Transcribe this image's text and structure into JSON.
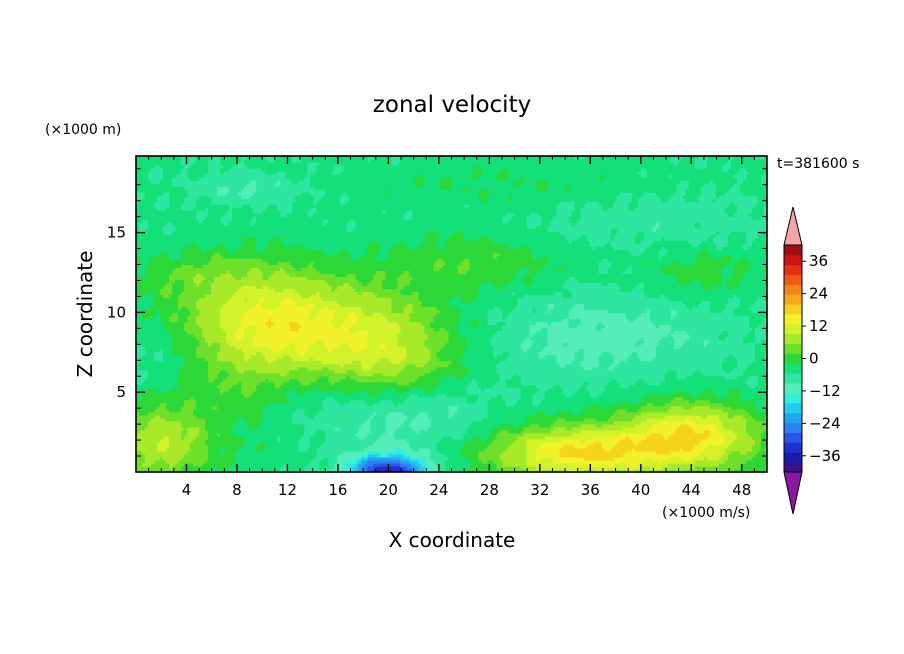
{
  "chart_data": {
    "type": "heatmap",
    "title": "zonal velocity",
    "xlabel": "X coordinate",
    "ylabel": "Z coordinate",
    "x_unit": "(×1000 m/s)",
    "y_unit": "(×1000 m)",
    "time_label": "t=381600 s",
    "xlim": [
      0,
      50
    ],
    "ylim": [
      0,
      19.8
    ],
    "xticks": [
      4,
      8,
      12,
      16,
      20,
      24,
      28,
      32,
      36,
      40,
      44,
      48
    ],
    "yticks": [
      5,
      10,
      15
    ],
    "colorbar": {
      "ticks": [
        36,
        24,
        12,
        0,
        -12,
        -24,
        -36
      ],
      "range": [
        -42,
        42
      ],
      "step": 3,
      "colors_low_to_high": [
        "#3a0f8c",
        "#1a1aa6",
        "#1f2fd0",
        "#2a55e6",
        "#2f7fef",
        "#22a6ee",
        "#22ccee",
        "#33eedd",
        "#55eebb",
        "#2ee6a0",
        "#14e07a",
        "#2cd838",
        "#6ee02a",
        "#a8ea2a",
        "#d2f22a",
        "#f2f22a",
        "#f5d21c",
        "#f5a81c",
        "#f58418",
        "#f25a14",
        "#e63014",
        "#cc1414",
        "#a01010"
      ],
      "under_color": "#8a17a6",
      "over_color": "#f4a6a6"
    },
    "field_description_values": [
      {
        "name": "lower-left jet",
        "x": [
          0,
          6
        ],
        "z": [
          0,
          4
        ],
        "value": 8
      },
      {
        "name": "mid-left maximum",
        "x": [
          4,
          24
        ],
        "z": [
          6,
          13
        ],
        "value": 9
      },
      {
        "name": "bottom minimum",
        "x": [
          16,
          24
        ],
        "z": [
          0,
          1.5
        ],
        "value": -22
      },
      {
        "name": "lower-right jet",
        "x": [
          30,
          50
        ],
        "z": [
          0,
          3.5
        ],
        "value": 11
      },
      {
        "name": "upper background",
        "x": [
          0,
          50
        ],
        "z": [
          14,
          19.8
        ],
        "value": -6
      }
    ]
  }
}
